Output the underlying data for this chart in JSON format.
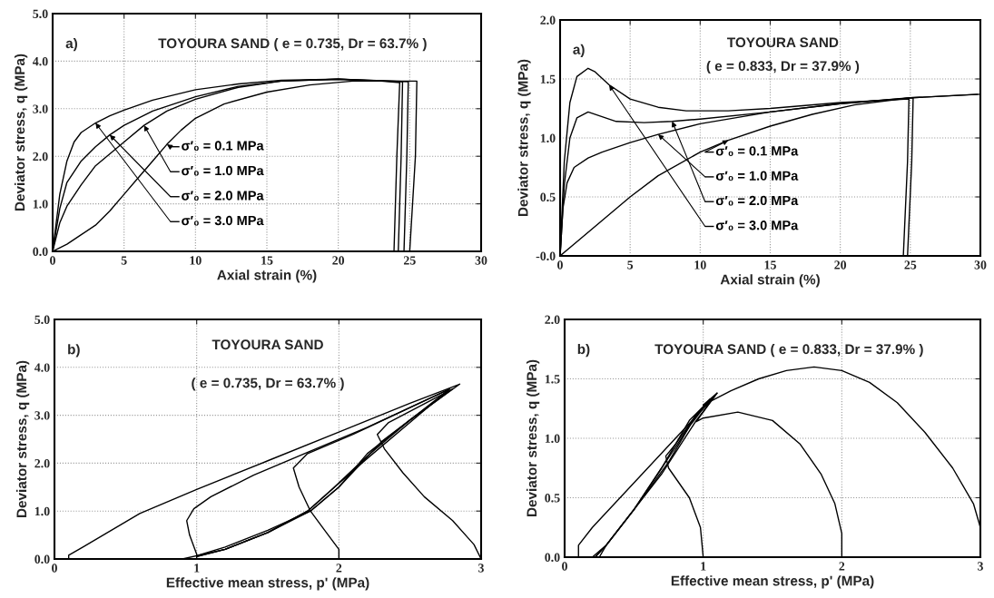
{
  "chart_data": [
    {
      "type": "line",
      "title": "TOYOURA SAND ( e = 0.735, Dr = 63.7% )",
      "annotations": [
        "a)"
      ],
      "xlabel": "Axial strain (%)",
      "ylabel": "Deviator stress, q (MPa)",
      "xlim": [
        0,
        30
      ],
      "ylim": [
        0,
        5
      ],
      "xticks": [
        0,
        5,
        10,
        15,
        20,
        25,
        30
      ],
      "yticks": [
        {
          "value": 0,
          "label": "0.0"
        },
        {
          "value": 1,
          "label": "1.0"
        },
        {
          "value": 2,
          "label": "2.0"
        },
        {
          "value": 3,
          "label": "3.0"
        },
        {
          "value": 4,
          "label": "4.0"
        },
        {
          "value": 5,
          "label": "5.0"
        }
      ],
      "grid": true,
      "line_style": "solid",
      "legend": "center",
      "series": [
        {
          "name": "σ′₀ = 0.1 MPa",
          "color": "#000000",
          "x": [
            0,
            1,
            2,
            3,
            4,
            5,
            6,
            7,
            8,
            9,
            10,
            12,
            15,
            18,
            21,
            25.5,
            25.4,
            25.1,
            25.0
          ],
          "values": [
            0,
            0.15,
            0.35,
            0.55,
            0.85,
            1.2,
            1.55,
            1.9,
            2.25,
            2.55,
            2.8,
            3.1,
            3.35,
            3.5,
            3.58,
            3.58,
            2.0,
            0.5,
            0
          ]
        },
        {
          "name": "σ′₀ = 1.0 MPa",
          "color": "#000000",
          "x": [
            0,
            0.5,
            1,
            2,
            3,
            5,
            6.4,
            8,
            10,
            13,
            16,
            20,
            24.9,
            24.8,
            24.6
          ],
          "values": [
            0,
            0.6,
            0.95,
            1.4,
            1.8,
            2.3,
            2.65,
            2.95,
            3.2,
            3.45,
            3.58,
            3.62,
            3.57,
            2.0,
            0
          ]
        },
        {
          "name": "σ′₀ = 2.0 MPa",
          "color": "#000000",
          "x": [
            0,
            0.5,
            1,
            2,
            3,
            4,
            5,
            7,
            10,
            13,
            16,
            20,
            24.5,
            24.4,
            24.2
          ],
          "values": [
            0,
            0.9,
            1.45,
            1.9,
            2.2,
            2.45,
            2.65,
            2.95,
            3.25,
            3.47,
            3.58,
            3.62,
            3.57,
            2.0,
            0
          ]
        },
        {
          "name": "σ′₀ = 3.0 MPa",
          "color": "#000000",
          "x": [
            0,
            0.5,
            1,
            1.5,
            2,
            3,
            4,
            5,
            7,
            10,
            13,
            16,
            20,
            23,
            24.3,
            24.1,
            23.9
          ],
          "values": [
            0,
            1.2,
            1.9,
            2.3,
            2.5,
            2.7,
            2.85,
            2.97,
            3.18,
            3.4,
            3.52,
            3.6,
            3.62,
            3.58,
            3.55,
            2.0,
            0
          ]
        }
      ]
    },
    {
      "type": "line",
      "title": "TOYOURA SAND",
      "subtitle": "( e = 0.833, Dr = 37.9% )",
      "annotations": [
        "a)"
      ],
      "xlabel": "Axial strain (%)",
      "ylabel": "Deviator stress, q (MPa)",
      "xlim": [
        0,
        30
      ],
      "ylim": [
        0,
        2
      ],
      "xticks": [
        0,
        5,
        10,
        15,
        20,
        25,
        30
      ],
      "yticks": [
        {
          "value": 0,
          "label": "-0.0"
        },
        {
          "value": 0.5,
          "label": "0.5"
        },
        {
          "value": 1,
          "label": "1.0"
        },
        {
          "value": 1.5,
          "label": "1.5"
        },
        {
          "value": 2,
          "label": "2.0"
        }
      ],
      "grid": true,
      "line_style": "solid",
      "legend": "center",
      "series": [
        {
          "name": "σ′₀ = 0.1 MPa",
          "color": "#000000",
          "x": [
            0,
            1,
            2,
            3,
            5,
            7,
            10,
            12,
            15,
            18,
            21,
            25,
            29.8
          ],
          "values": [
            0,
            0.1,
            0.2,
            0.3,
            0.5,
            0.68,
            0.88,
            0.98,
            1.1,
            1.2,
            1.28,
            1.34,
            1.37
          ]
        },
        {
          "name": "σ′₀ = 1.0 MPa",
          "color": "#000000",
          "x": [
            0,
            0.2,
            0.5,
            1,
            2,
            3,
            5,
            7,
            10,
            15,
            20,
            25,
            30
          ],
          "values": [
            0,
            0.4,
            0.62,
            0.75,
            0.83,
            0.88,
            0.96,
            1.03,
            1.12,
            1.22,
            1.29,
            1.34,
            1.37
          ]
        },
        {
          "name": "σ′₀ = 2.0 MPa",
          "color": "#000000",
          "x": [
            0,
            0.3,
            0.7,
            1.2,
            2,
            3,
            4,
            6,
            8,
            10,
            15,
            20,
            25.2,
            25.1,
            24.8
          ],
          "values": [
            0,
            0.6,
            1.0,
            1.17,
            1.22,
            1.18,
            1.14,
            1.13,
            1.14,
            1.16,
            1.22,
            1.29,
            1.34,
            0.8,
            0
          ]
        },
        {
          "name": "σ′₀ = 3.0 MPa",
          "color": "#000000",
          "x": [
            0,
            0.3,
            0.7,
            1.2,
            2,
            2.5,
            3.5,
            5,
            7,
            9,
            12,
            15,
            20,
            24.9,
            24.8,
            24.5
          ],
          "values": [
            0,
            0.8,
            1.3,
            1.52,
            1.59,
            1.56,
            1.45,
            1.33,
            1.26,
            1.23,
            1.23,
            1.25,
            1.3,
            1.33,
            0.8,
            0
          ]
        }
      ]
    },
    {
      "type": "line",
      "title": "TOYOURA SAND",
      "subtitle": "( e = 0.735, Dr = 63.7% )",
      "annotations": [
        "b)"
      ],
      "xlabel": "Effective mean stress, p' (MPa)",
      "ylabel": "Deviator stress, q (MPa)",
      "xlim": [
        0,
        3
      ],
      "ylim": [
        0,
        5
      ],
      "xticks": [
        0,
        1,
        2,
        3
      ],
      "yticks": [
        {
          "value": 0,
          "label": "0.0"
        },
        {
          "value": 1,
          "label": "1.0"
        },
        {
          "value": 2,
          "label": "2.0"
        },
        {
          "value": 3,
          "label": "3.0"
        },
        {
          "value": 4,
          "label": "4.0"
        },
        {
          "value": 5,
          "label": "5.0"
        }
      ],
      "grid": true,
      "line_style": "solid",
      "series": [
        {
          "color": "#000000",
          "x": [
            0.1,
            0.1,
            0.2,
            0.6,
            1.0,
            1.5,
            2.0,
            2.5,
            2.85,
            2.5,
            2.3,
            2.0,
            1.8,
            1.5,
            1.2,
            0.9
          ],
          "values": [
            0,
            0.08,
            0.25,
            0.95,
            1.45,
            2.05,
            2.65,
            3.25,
            3.65,
            2.9,
            2.45,
            1.5,
            1.0,
            0.55,
            0.2,
            0
          ]
        },
        {
          "color": "#000000",
          "x": [
            1.0,
            1.0,
            0.95,
            0.93,
            0.98,
            1.1,
            1.4,
            1.8,
            2.2,
            2.78,
            2.5,
            2.2,
            2.0,
            1.8,
            1.5,
            1.2,
            1.0
          ],
          "values": [
            0,
            0.1,
            0.5,
            0.8,
            1.05,
            1.3,
            1.75,
            2.25,
            2.75,
            3.55,
            2.9,
            2.2,
            1.5,
            1.0,
            0.6,
            0.25,
            0.07
          ]
        },
        {
          "color": "#000000",
          "x": [
            2.0,
            2.0,
            1.9,
            1.8,
            1.72,
            1.68,
            1.78,
            2.1,
            2.78,
            2.5,
            2.2,
            1.95,
            1.78,
            1.5,
            1.2,
            1.0
          ],
          "values": [
            0,
            0.2,
            0.6,
            1.0,
            1.5,
            1.9,
            2.2,
            2.6,
            3.55,
            2.85,
            2.1,
            1.45,
            1.0,
            0.55,
            0.2,
            0.05
          ]
        },
        {
          "color": "#000000",
          "x": [
            3.0,
            2.95,
            2.8,
            2.6,
            2.45,
            2.32,
            2.27,
            2.35,
            2.8,
            2.5,
            2.2,
            1.95,
            1.78,
            1.5,
            1.2,
            1.0
          ],
          "values": [
            0,
            0.3,
            0.8,
            1.3,
            1.8,
            2.3,
            2.6,
            2.85,
            3.55,
            2.9,
            2.15,
            1.45,
            1.0,
            0.55,
            0.2,
            0.05
          ]
        }
      ]
    },
    {
      "type": "line",
      "title": "TOYOURA SAND ( e = 0.833, Dr = 37.9% )",
      "annotations": [
        "b)"
      ],
      "xlabel": "Effective mean stress, p' (MPa)",
      "ylabel": "Deviator stress, q (MPa)",
      "xlim": [
        0,
        3
      ],
      "ylim": [
        0,
        2
      ],
      "xticks": [
        0,
        1,
        2,
        3
      ],
      "yticks": [
        {
          "value": 0,
          "label": "0.0"
        },
        0.5,
        {
          "value": 1,
          "label": "1.0"
        },
        1.5,
        {
          "value": 2,
          "label": "2.0"
        }
      ],
      "grid": true,
      "line_style": "solid",
      "series": [
        {
          "color": "#000000",
          "x": [
            0.1,
            0.1,
            0.2,
            0.4,
            0.6,
            0.8,
            1.0,
            1.08,
            0.95,
            0.7,
            0.5,
            0.3,
            0.2
          ],
          "values": [
            0,
            0.1,
            0.25,
            0.5,
            0.75,
            1.0,
            1.25,
            1.35,
            1.15,
            0.7,
            0.4,
            0.1,
            0
          ]
        },
        {
          "color": "#000000",
          "x": [
            1.0,
            0.98,
            0.9,
            0.75,
            0.73,
            0.8,
            0.95,
            1.05,
            0.9,
            0.7,
            0.5,
            0.3,
            0.25
          ],
          "values": [
            0,
            0.25,
            0.5,
            0.75,
            0.85,
            0.95,
            1.2,
            1.33,
            1.1,
            0.75,
            0.4,
            0.1,
            0
          ]
        },
        {
          "color": "#000000",
          "x": [
            2.0,
            2.0,
            1.95,
            1.85,
            1.7,
            1.5,
            1.25,
            1.0,
            0.95,
            1.05,
            1.1,
            0.95,
            0.75,
            0.5,
            0.3,
            0.22
          ],
          "values": [
            0,
            0.2,
            0.45,
            0.7,
            0.95,
            1.15,
            1.22,
            1.17,
            1.14,
            1.3,
            1.38,
            1.2,
            0.8,
            0.4,
            0.1,
            0
          ]
        },
        {
          "color": "#000000",
          "x": [
            3.0,
            2.95,
            2.8,
            2.6,
            2.4,
            2.2,
            2.0,
            1.8,
            1.6,
            1.4,
            1.2,
            1.0,
            1.1,
            0.9,
            0.7,
            0.5,
            0.3,
            0.22
          ],
          "values": [
            0.25,
            0.45,
            0.75,
            1.05,
            1.3,
            1.47,
            1.57,
            1.6,
            1.57,
            1.5,
            1.4,
            1.28,
            1.38,
            1.15,
            0.75,
            0.4,
            0.1,
            0
          ]
        }
      ]
    }
  ]
}
